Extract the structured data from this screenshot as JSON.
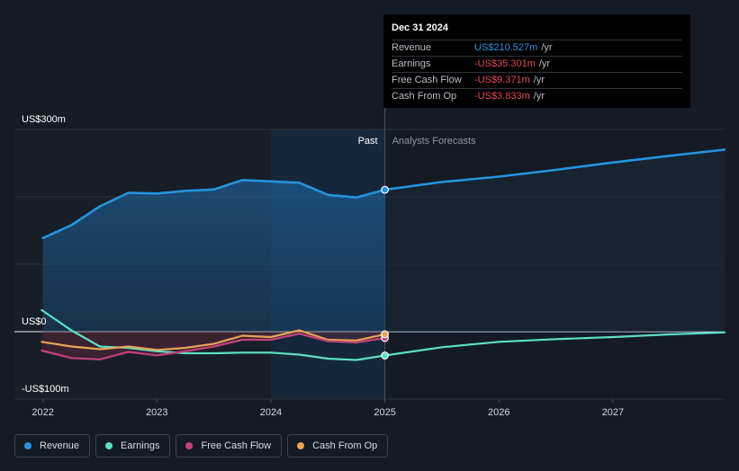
{
  "chart_data": {
    "type": "line",
    "y_unit_labels": [
      {
        "label": "US$300m",
        "value": 300
      },
      {
        "label": "US$0",
        "value": 0
      },
      {
        "label": "-US$100m",
        "value": -100
      }
    ],
    "ylim": [
      -100,
      300
    ],
    "x_ticks": [
      {
        "label": "2022",
        "value": 2022
      },
      {
        "label": "2023",
        "value": 2023
      },
      {
        "label": "2024",
        "value": 2024
      },
      {
        "label": "2025",
        "value": 2025
      },
      {
        "label": "2026",
        "value": 2026
      },
      {
        "label": "2027",
        "value": 2027
      }
    ],
    "xlim": [
      2021.75,
      2027.98
    ],
    "divider_x": 2025.0,
    "highlight_start_x": 2024.0,
    "past_label": "Past",
    "forecast_label": "Analysts Forecasts",
    "series": [
      {
        "name": "Revenue",
        "color": "#2394df",
        "fill": true,
        "points": [
          [
            2022.0,
            139
          ],
          [
            2022.25,
            158
          ],
          [
            2022.5,
            186
          ],
          [
            2022.75,
            206
          ],
          [
            2023.0,
            205
          ],
          [
            2023.25,
            209
          ],
          [
            2023.5,
            211
          ],
          [
            2023.75,
            225
          ],
          [
            2024.0,
            223
          ],
          [
            2024.25,
            221
          ],
          [
            2024.5,
            203
          ],
          [
            2024.75,
            199
          ],
          [
            2025.0,
            210.5
          ],
          [
            2025.5,
            222
          ],
          [
            2026.0,
            230
          ],
          [
            2026.5,
            240
          ],
          [
            2027.0,
            251
          ],
          [
            2027.5,
            261
          ],
          [
            2027.98,
            270
          ]
        ]
      },
      {
        "name": "Earnings",
        "color": "#5ce0c4",
        "fill": false,
        "points": [
          [
            2021.99,
            32
          ],
          [
            2022.25,
            2
          ],
          [
            2022.5,
            -22
          ],
          [
            2022.75,
            -24
          ],
          [
            2023.0,
            -29
          ],
          [
            2023.25,
            -32
          ],
          [
            2023.5,
            -32
          ],
          [
            2023.75,
            -31
          ],
          [
            2024.0,
            -31
          ],
          [
            2024.25,
            -34
          ],
          [
            2024.5,
            -40
          ],
          [
            2024.75,
            -42
          ],
          [
            2025.0,
            -35.3
          ],
          [
            2025.5,
            -23
          ],
          [
            2026.0,
            -15
          ],
          [
            2026.5,
            -11
          ],
          [
            2027.0,
            -8
          ],
          [
            2027.5,
            -4
          ],
          [
            2027.98,
            -1
          ]
        ]
      },
      {
        "name": "Free Cash Flow",
        "color": "#c2427a",
        "fill": false,
        "points": [
          [
            2021.99,
            -28
          ],
          [
            2022.25,
            -39
          ],
          [
            2022.5,
            -41
          ],
          [
            2022.75,
            -30
          ],
          [
            2023.0,
            -35
          ],
          [
            2023.25,
            -29
          ],
          [
            2023.5,
            -22
          ],
          [
            2023.75,
            -12
          ],
          [
            2024.0,
            -12
          ],
          [
            2024.25,
            -3
          ],
          [
            2024.5,
            -14
          ],
          [
            2024.75,
            -16
          ],
          [
            2025.0,
            -9.4
          ]
        ]
      },
      {
        "name": "Cash From Op",
        "color": "#e8a355",
        "fill": false,
        "points": [
          [
            2021.99,
            -15
          ],
          [
            2022.25,
            -22
          ],
          [
            2022.5,
            -26
          ],
          [
            2022.75,
            -22
          ],
          [
            2023.0,
            -27
          ],
          [
            2023.25,
            -24
          ],
          [
            2023.5,
            -18
          ],
          [
            2023.75,
            -6
          ],
          [
            2024.0,
            -8
          ],
          [
            2024.25,
            2
          ],
          [
            2024.5,
            -12
          ],
          [
            2024.75,
            -13
          ],
          [
            2025.0,
            -3.8
          ]
        ]
      }
    ]
  },
  "tooltip": {
    "date": "Dec 31 2024",
    "rows": [
      {
        "name": "Revenue",
        "value": "US$210.527m",
        "unit": "/yr",
        "color": "#2394df"
      },
      {
        "name": "Earnings",
        "value": "-US$35.301m",
        "unit": "/yr",
        "color": "#e5484d"
      },
      {
        "name": "Free Cash Flow",
        "value": "-US$9.371m",
        "unit": "/yr",
        "color": "#e5484d"
      },
      {
        "name": "Cash From Op",
        "value": "-US$3.833m",
        "unit": "/yr",
        "color": "#e5484d"
      }
    ]
  },
  "legend": [
    {
      "label": "Revenue",
      "color": "#2394df"
    },
    {
      "label": "Earnings",
      "color": "#5ce0c4"
    },
    {
      "label": "Free Cash Flow",
      "color": "#c2427a"
    },
    {
      "label": "Cash From Op",
      "color": "#e8a355"
    }
  ]
}
